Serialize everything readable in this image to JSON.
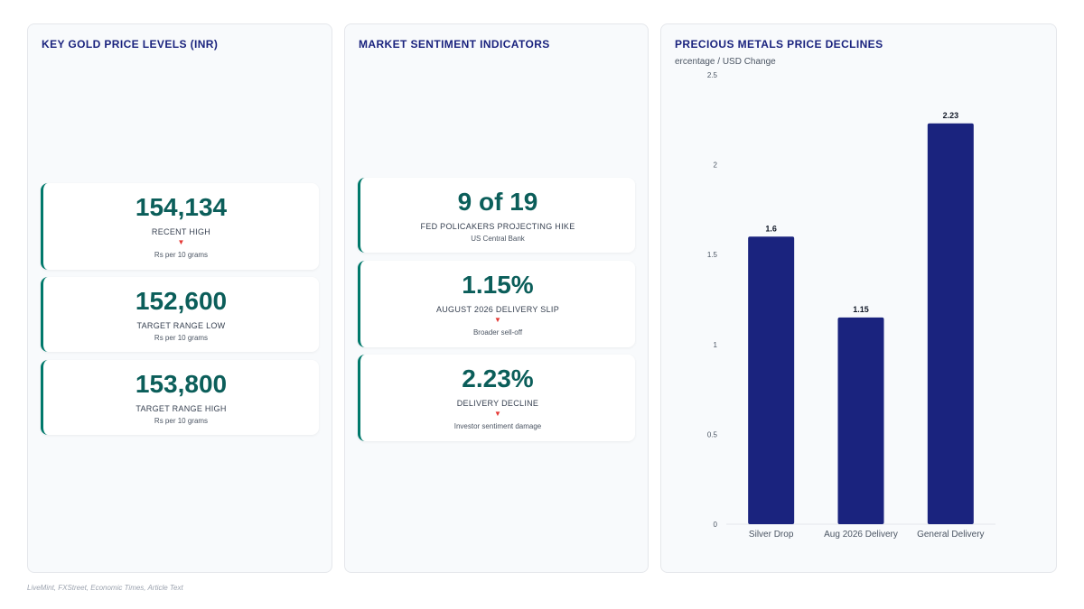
{
  "gold_panel": {
    "title": "KEY GOLD PRICE LEVELS (INR)",
    "cards": [
      {
        "value": "154,134",
        "label": "RECENT HIGH",
        "arrow": "▼",
        "sub": "Rs per 10 grams"
      },
      {
        "value": "152,600",
        "label": "TARGET RANGE LOW",
        "arrow": "",
        "sub": "Rs per 10 grams"
      },
      {
        "value": "153,800",
        "label": "TARGET RANGE HIGH",
        "arrow": "",
        "sub": "Rs per 10 grams"
      }
    ]
  },
  "sentiment_panel": {
    "title": "MARKET SENTIMENT INDICATORS",
    "cards": [
      {
        "value": "9 of 19",
        "label": "FED POLICAKERS PROJECTING HIKE",
        "arrow": "",
        "sub": "US Central Bank"
      },
      {
        "value": "1.15%",
        "label": "AUGUST 2026 DELIVERY SLIP",
        "arrow": "▼",
        "sub": "Broader sell-off"
      },
      {
        "value": "2.23%",
        "label": "DELIVERY DECLINE",
        "arrow": "▼",
        "sub": "Investor sentiment damage"
      }
    ]
  },
  "chart_panel": {
    "title": "PRECIOUS METALS PRICE DECLINES",
    "subtitle": "ercentage / USD Change"
  },
  "chart_data": {
    "type": "bar",
    "title": "PRECIOUS METALS PRICE DECLINES",
    "ylabel": "ercentage / USD Change",
    "xlabel": "",
    "categories": [
      "Silver Drop",
      "Aug 2026 Delivery",
      "General Delivery"
    ],
    "values": [
      1.6,
      1.15,
      2.23
    ],
    "data_labels": [
      "1.6",
      "1.15",
      "2.23"
    ],
    "ylim": [
      0,
      2.5
    ],
    "yticks": [
      0,
      0.5,
      1,
      1.5,
      2,
      2.5
    ],
    "ytick_labels": [
      "0",
      "0.5",
      "1",
      "1.5",
      "2",
      "2.5"
    ],
    "grid": false,
    "bar_color": "#1a237e"
  },
  "footer": "LiveMint, FXStreet, Economic Times, Article Text",
  "colors": {
    "accent": "#00796b",
    "value": "#0b5e5a",
    "title": "#1a237e",
    "down_arrow": "#e53935"
  }
}
